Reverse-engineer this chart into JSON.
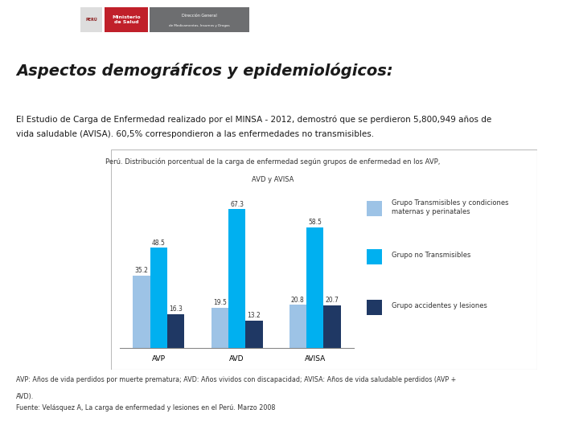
{
  "title_line1": "Perú. Distribución porcentual de la carga de enfermedad según grupos de enfermedad en los AVP,",
  "title_line2": "AVD y AVISA",
  "main_title": "Aspectos demográficos y epidemiológicos:",
  "body_text_line1": "El Estudio de Carga de Enfermedad realizado por el MINSA - 2012, demostró que se perdieron 5,800,949 años de",
  "body_text_line2": "vida saludable (AVISA). 60,5% correspondieron a las enfermedades no transmisibles.",
  "footnote_line1": "AVP: Años de vida perdidos por muerte prematura; AVD: Años vividos con discapacidad; AVISA: Años de vida saludable perdidos (AVP +",
  "footnote_line2": "AVD).",
  "footnote_line3": "Fuente: Velásquez A, La carga de enfermedad y lesiones en el Perú. Marzo 2008",
  "categories": [
    "AVP",
    "AVD",
    "AVISA"
  ],
  "series": [
    {
      "name": "Grupo Transmisibles y condiciones\nmaternas y perinatales",
      "values": [
        35.2,
        19.5,
        20.8
      ],
      "color": "#9DC3E6"
    },
    {
      "name": "Grupo no Transmisibles",
      "values": [
        48.5,
        67.3,
        58.5
      ],
      "color": "#00B0F0"
    },
    {
      "name": "Grupo accidentes y lesiones",
      "values": [
        16.3,
        13.2,
        20.7
      ],
      "color": "#1F3864"
    }
  ],
  "bar_width": 0.22,
  "ylim": [
    0,
    75
  ],
  "background_color": "#FFFFFF",
  "border_color": "#BBBBBB",
  "chart_title_fontsize": 6.0,
  "axis_fontsize": 6.5,
  "legend_fontsize": 6.5,
  "bar_label_fontsize": 5.5,
  "body_fontsize": 7.5,
  "footnote_fontsize": 5.8,
  "main_title_fontsize": 14,
  "header_red": "#C0202A",
  "header_gray": "#6D6E70",
  "header_lightgray": "#AAAAAA"
}
